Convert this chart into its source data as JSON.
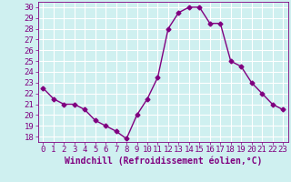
{
  "x": [
    0,
    1,
    2,
    3,
    4,
    5,
    6,
    7,
    8,
    9,
    10,
    11,
    12,
    13,
    14,
    15,
    16,
    17,
    18,
    19,
    20,
    21,
    22,
    23
  ],
  "y": [
    22.5,
    21.5,
    21.0,
    21.0,
    20.5,
    19.5,
    19.0,
    18.5,
    17.8,
    20.0,
    21.5,
    23.5,
    28.0,
    29.5,
    30.0,
    30.0,
    28.5,
    28.5,
    25.0,
    24.5,
    23.0,
    22.0,
    21.0,
    20.5
  ],
  "line_color": "#800080",
  "marker": "D",
  "marker_size": 2.5,
  "xlabel": "Windchill (Refroidissement éolien,°C)",
  "ylim": [
    17.5,
    30.5
  ],
  "xlim": [
    -0.5,
    23.5
  ],
  "yticks": [
    18,
    19,
    20,
    21,
    22,
    23,
    24,
    25,
    26,
    27,
    28,
    29,
    30
  ],
  "xticks": [
    0,
    1,
    2,
    3,
    4,
    5,
    6,
    7,
    8,
    9,
    10,
    11,
    12,
    13,
    14,
    15,
    16,
    17,
    18,
    19,
    20,
    21,
    22,
    23
  ],
  "grid_color": "#ffffff",
  "bg_color": "#cff0f0",
  "xlabel_fontsize": 7,
  "tick_fontsize": 6.5,
  "line_width": 1.0
}
